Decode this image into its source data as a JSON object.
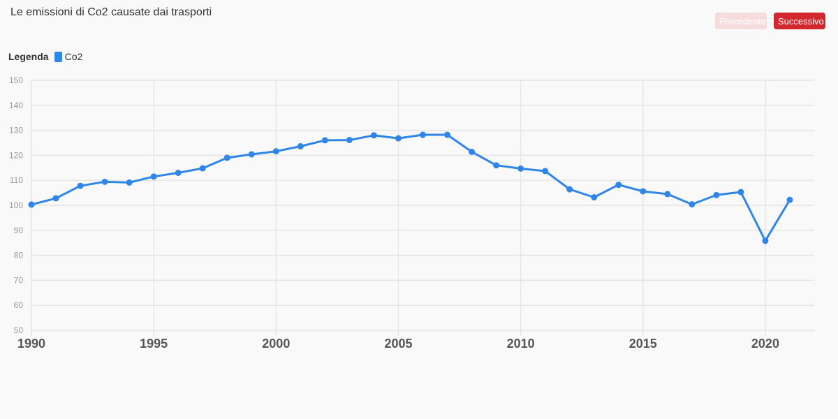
{
  "header": {
    "title": "Le emissioni di Co2 causate dai trasporti",
    "prev_label": "Precedente",
    "next_label": "Successivo"
  },
  "legend": {
    "title": "Legenda"
  },
  "colors": {
    "series": "#2f86e8",
    "grid": "#e6e6e6",
    "next_button": "#d3272f",
    "prev_button": "#f6dcdd"
  },
  "chart_data": {
    "type": "line",
    "title": "Le emissioni di Co2 causate dai trasporti",
    "xlabel": "",
    "ylabel": "",
    "xlim": [
      1990,
      2022
    ],
    "ylim": [
      50,
      150
    ],
    "y_ticks": [
      50,
      60,
      70,
      80,
      90,
      100,
      110,
      120,
      130,
      140,
      150
    ],
    "x_ticks": [
      1990,
      1995,
      2000,
      2005,
      2010,
      2015,
      2020
    ],
    "grid": true,
    "legend_position": "top-left",
    "x": [
      1990,
      1991,
      1992,
      1993,
      1994,
      1995,
      1996,
      1997,
      1998,
      1999,
      2000,
      2001,
      2002,
      2003,
      2004,
      2005,
      2006,
      2007,
      2008,
      2009,
      2010,
      2011,
      2012,
      2013,
      2014,
      2015,
      2016,
      2017,
      2018,
      2019,
      2020,
      2021
    ],
    "series": [
      {
        "name": "Co2",
        "values": [
          100.3,
          102.8,
          107.8,
          109.4,
          109.1,
          111.5,
          113.0,
          114.8,
          119.0,
          120.4,
          121.6,
          123.6,
          126.0,
          126.1,
          128.0,
          126.8,
          128.2,
          128.2,
          121.4,
          116.0,
          114.7,
          113.7,
          106.4,
          103.2,
          108.2,
          105.6,
          104.5,
          100.4,
          104.1,
          105.3,
          85.8,
          102.2
        ]
      }
    ]
  }
}
